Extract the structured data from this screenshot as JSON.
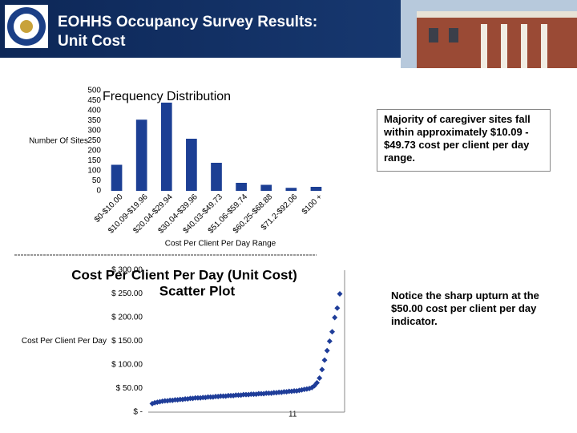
{
  "header": {
    "title_lines": [
      "EOHHS Occupancy Survey Results:",
      "Unit Cost"
    ]
  },
  "notes": [
    "Majority of caregiver sites fall within approximately $10.09 - $49.73 cost per client per day range.",
    "Notice the sharp upturn at the $50.00 cost per client per day indicator."
  ],
  "page_number": "11",
  "chart_data": [
    {
      "type": "bar",
      "title": "Frequency Distribution",
      "ylabel": "Number Of Sites",
      "xlabel": "Cost Per Client Per Day Range",
      "categories": [
        "$0-$10.00",
        "$10.09-$19.96",
        "$20.04-$29.94",
        "$30.04-$39.96",
        "$40.03-$49.73",
        "$51.06-$59.74",
        "$60.25-$68.88",
        "$71.2-$92.06",
        "$100 +"
      ],
      "values": [
        130,
        355,
        440,
        260,
        140,
        40,
        30,
        15,
        20
      ],
      "color": "#1c3f94",
      "ylim": [
        0,
        500
      ],
      "yticks": [
        0,
        50,
        100,
        150,
        200,
        250,
        300,
        350,
        400,
        450,
        500
      ]
    },
    {
      "type": "scatter",
      "title": "Cost Per Client Per Day (Unit Cost)",
      "subtitle": "Scatter Plot",
      "ylabel": "Cost Per Client Per Day",
      "color": "#1f3d99",
      "values": [
        18,
        20,
        21,
        22,
        23,
        24,
        24,
        25,
        25,
        26,
        26,
        27,
        27,
        28,
        28,
        29,
        29,
        30,
        30,
        30,
        31,
        31,
        32,
        32,
        32,
        33,
        33,
        34,
        34,
        34,
        35,
        35,
        35,
        36,
        36,
        36,
        37,
        37,
        37,
        38,
        38,
        38,
        39,
        39,
        39,
        40,
        40,
        40,
        41,
        41,
        42,
        42,
        43,
        43,
        44,
        44,
        45,
        45,
        46,
        47,
        48,
        49,
        50,
        52,
        56,
        62,
        72,
        90,
        110,
        130,
        150,
        170,
        200,
        220,
        250
      ],
      "ylim": [
        0,
        300
      ],
      "yticks": [
        {
          "value": 0,
          "label": "$ -"
        },
        {
          "value": 50,
          "label": "$ 50.00"
        },
        {
          "value": 100,
          "label": "$ 100.00"
        },
        {
          "value": 150,
          "label": "$ 150.00"
        },
        {
          "value": 200,
          "label": "$ 200.00"
        },
        {
          "value": 250,
          "label": "$ 250.00"
        },
        {
          "value": 300,
          "label": "$ 300.00"
        }
      ]
    }
  ]
}
